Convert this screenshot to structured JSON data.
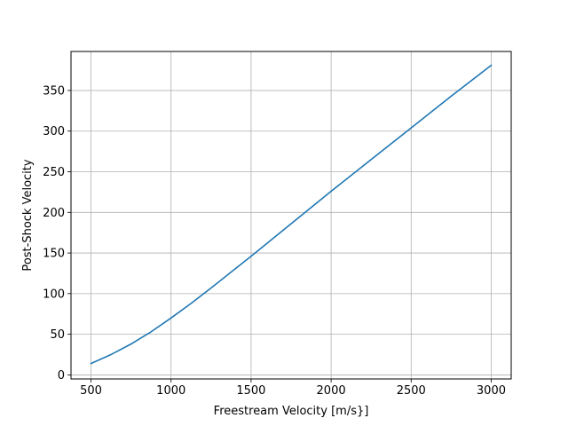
{
  "chart_data": {
    "type": "line",
    "title": "",
    "xlabel": "Freestream Velocity [m/s}]",
    "ylabel": "Post-Shock Velocity",
    "xlim": [
      375,
      3125
    ],
    "ylim": [
      -5,
      398
    ],
    "xticks": [
      500,
      1000,
      1500,
      2000,
      2500,
      3000
    ],
    "yticks": [
      0,
      50,
      100,
      150,
      200,
      250,
      300,
      350
    ],
    "grid": true,
    "series": [
      {
        "color": "#1f77b4",
        "x": [
          500,
          625,
          750,
          875,
          1000,
          1125,
          1250,
          1500,
          1750,
          2000,
          2250,
          2500,
          2750,
          3000
        ],
        "y": [
          14,
          25,
          38,
          53,
          70,
          88,
          107,
          146,
          186,
          226,
          265,
          304,
          343,
          381
        ]
      }
    ]
  }
}
